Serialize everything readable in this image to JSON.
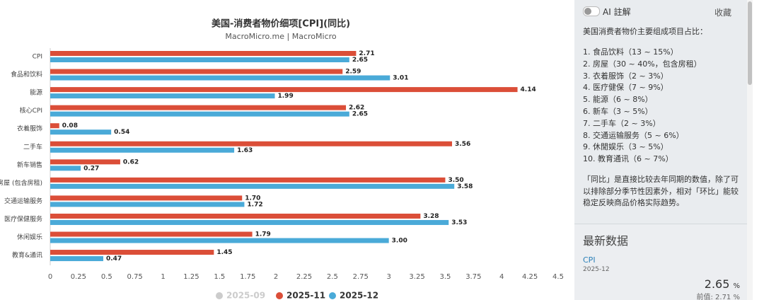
{
  "chart_data": {
    "type": "hbar",
    "title": "美国-消费者物价细项[CPI](同比)",
    "subtitle": "MacroMicro.me | MacroMicro",
    "categories": [
      "CPI",
      "食品和饮料",
      "能源",
      "核心CPI",
      "衣着服饰",
      "二手车",
      "新车销售",
      "房屋 (包含房租)",
      "交通运输服务",
      "医疗保健服务",
      "休闲娱乐",
      "教育&通讯"
    ],
    "series": [
      {
        "name": "2025-09",
        "color": "#cccccc",
        "hidden": true,
        "values": [
          null,
          null,
          null,
          null,
          null,
          null,
          null,
          null,
          null,
          null,
          null,
          null
        ]
      },
      {
        "name": "2025-11",
        "color": "#db4e38",
        "values": [
          2.71,
          2.59,
          4.14,
          2.62,
          0.08,
          3.56,
          0.62,
          3.5,
          1.7,
          3.28,
          1.79,
          1.45
        ],
        "value_labels": [
          "2.71",
          "2.59",
          "4.14",
          "2.62",
          "0.08",
          "3.56",
          "0.62",
          "3.50",
          "1.70",
          "3.28",
          "1.79",
          "1.45"
        ]
      },
      {
        "name": "2025-12",
        "color": "#4aaad8",
        "values": [
          2.65,
          3.01,
          1.99,
          2.65,
          0.54,
          1.63,
          0.27,
          3.58,
          1.72,
          3.53,
          3.0,
          0.47
        ],
        "value_labels": [
          "2.65",
          "3.01",
          "1.99",
          "2.65",
          "0.54",
          "1.63",
          "0.27",
          "3.58",
          "1.72",
          "3.53",
          "3.00",
          "0.47"
        ]
      }
    ],
    "xlim": [
      0,
      4.5
    ],
    "xticks": [
      0,
      0.25,
      0.5,
      0.75,
      1,
      1.25,
      1.5,
      1.75,
      2,
      2.25,
      2.5,
      2.75,
      3,
      3.25,
      3.5,
      3.75,
      4,
      4.25,
      4.5
    ],
    "grid": false
  },
  "sidebar": {
    "ai_label": "AI 註解",
    "favorite": "收藏",
    "intro": "美国消费者物价主要组成项目占比：",
    "items": [
      "1. 食品饮料（13 ~ 15%）",
      "2. 房屋（30 ~ 40%，包含房租）",
      "3. 衣着服饰（2 ~ 3%）",
      "4. 医疗健保（7 ~ 9%）",
      "5. 能源（6 ~ 8%）",
      "6. 新车（3 ~ 5%）",
      "7. 二手车（2 ~ 3%）",
      "8. 交通运输服务（5 ~ 6%）",
      "9. 休閒娱乐（3 ~ 5%）",
      "10. 教育通讯（6 ~ 7%）"
    ],
    "note": "「同比」是直接比较去年同期的数值，除了可以排除部分季节性因素外，相对「环比」能较稳定反映商品价格实际趋势。",
    "latest": {
      "heading": "最新数据",
      "name": "CPI",
      "date": "2025-12",
      "value": 2.65,
      "unit": "%",
      "previous_label": "前值:",
      "previous": 2.71
    }
  }
}
